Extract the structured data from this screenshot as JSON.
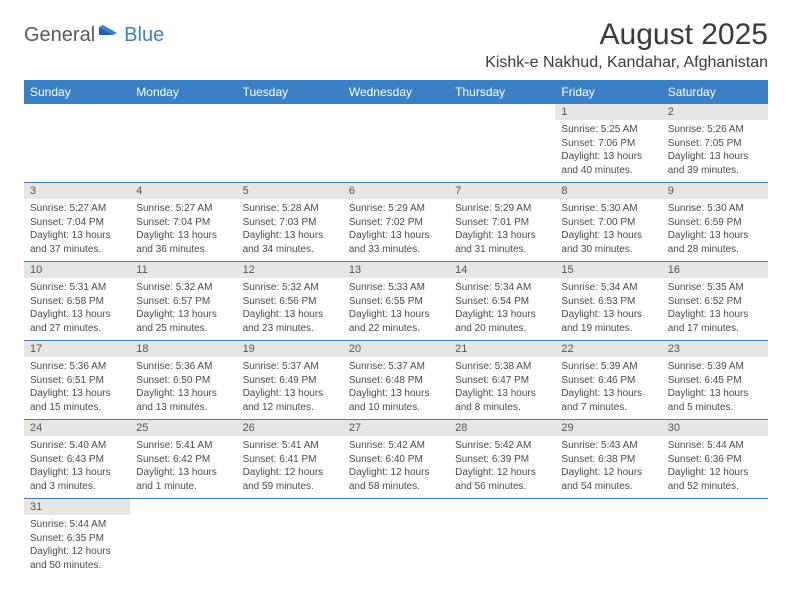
{
  "logo": {
    "text1": "General",
    "text2": "Blue"
  },
  "title": "August 2025",
  "location": "Kishk-e Nakhud, Kandahar, Afghanistan",
  "colors": {
    "header_bg": "#3b7fc4",
    "header_text": "#ffffff",
    "daynum_bg": "#e6e6e6",
    "row_border": "#3b7fc4",
    "text": "#4a4a4a"
  },
  "day_names": [
    "Sunday",
    "Monday",
    "Tuesday",
    "Wednesday",
    "Thursday",
    "Friday",
    "Saturday"
  ],
  "weeks": [
    {
      "nums": [
        "",
        "",
        "",
        "",
        "",
        "1",
        "2"
      ],
      "cells": [
        null,
        null,
        null,
        null,
        null,
        {
          "sunrise": "Sunrise: 5:25 AM",
          "sunset": "Sunset: 7:06 PM",
          "daylight": "Daylight: 13 hours and 40 minutes."
        },
        {
          "sunrise": "Sunrise: 5:26 AM",
          "sunset": "Sunset: 7:05 PM",
          "daylight": "Daylight: 13 hours and 39 minutes."
        }
      ]
    },
    {
      "nums": [
        "3",
        "4",
        "5",
        "6",
        "7",
        "8",
        "9"
      ],
      "cells": [
        {
          "sunrise": "Sunrise: 5:27 AM",
          "sunset": "Sunset: 7:04 PM",
          "daylight": "Daylight: 13 hours and 37 minutes."
        },
        {
          "sunrise": "Sunrise: 5:27 AM",
          "sunset": "Sunset: 7:04 PM",
          "daylight": "Daylight: 13 hours and 36 minutes."
        },
        {
          "sunrise": "Sunrise: 5:28 AM",
          "sunset": "Sunset: 7:03 PM",
          "daylight": "Daylight: 13 hours and 34 minutes."
        },
        {
          "sunrise": "Sunrise: 5:29 AM",
          "sunset": "Sunset: 7:02 PM",
          "daylight": "Daylight: 13 hours and 33 minutes."
        },
        {
          "sunrise": "Sunrise: 5:29 AM",
          "sunset": "Sunset: 7:01 PM",
          "daylight": "Daylight: 13 hours and 31 minutes."
        },
        {
          "sunrise": "Sunrise: 5:30 AM",
          "sunset": "Sunset: 7:00 PM",
          "daylight": "Daylight: 13 hours and 30 minutes."
        },
        {
          "sunrise": "Sunrise: 5:30 AM",
          "sunset": "Sunset: 6:59 PM",
          "daylight": "Daylight: 13 hours and 28 minutes."
        }
      ]
    },
    {
      "nums": [
        "10",
        "11",
        "12",
        "13",
        "14",
        "15",
        "16"
      ],
      "cells": [
        {
          "sunrise": "Sunrise: 5:31 AM",
          "sunset": "Sunset: 6:58 PM",
          "daylight": "Daylight: 13 hours and 27 minutes."
        },
        {
          "sunrise": "Sunrise: 5:32 AM",
          "sunset": "Sunset: 6:57 PM",
          "daylight": "Daylight: 13 hours and 25 minutes."
        },
        {
          "sunrise": "Sunrise: 5:32 AM",
          "sunset": "Sunset: 6:56 PM",
          "daylight": "Daylight: 13 hours and 23 minutes."
        },
        {
          "sunrise": "Sunrise: 5:33 AM",
          "sunset": "Sunset: 6:55 PM",
          "daylight": "Daylight: 13 hours and 22 minutes."
        },
        {
          "sunrise": "Sunrise: 5:34 AM",
          "sunset": "Sunset: 6:54 PM",
          "daylight": "Daylight: 13 hours and 20 minutes."
        },
        {
          "sunrise": "Sunrise: 5:34 AM",
          "sunset": "Sunset: 6:53 PM",
          "daylight": "Daylight: 13 hours and 19 minutes."
        },
        {
          "sunrise": "Sunrise: 5:35 AM",
          "sunset": "Sunset: 6:52 PM",
          "daylight": "Daylight: 13 hours and 17 minutes."
        }
      ]
    },
    {
      "nums": [
        "17",
        "18",
        "19",
        "20",
        "21",
        "22",
        "23"
      ],
      "cells": [
        {
          "sunrise": "Sunrise: 5:36 AM",
          "sunset": "Sunset: 6:51 PM",
          "daylight": "Daylight: 13 hours and 15 minutes."
        },
        {
          "sunrise": "Sunrise: 5:36 AM",
          "sunset": "Sunset: 6:50 PM",
          "daylight": "Daylight: 13 hours and 13 minutes."
        },
        {
          "sunrise": "Sunrise: 5:37 AM",
          "sunset": "Sunset: 6:49 PM",
          "daylight": "Daylight: 13 hours and 12 minutes."
        },
        {
          "sunrise": "Sunrise: 5:37 AM",
          "sunset": "Sunset: 6:48 PM",
          "daylight": "Daylight: 13 hours and 10 minutes."
        },
        {
          "sunrise": "Sunrise: 5:38 AM",
          "sunset": "Sunset: 6:47 PM",
          "daylight": "Daylight: 13 hours and 8 minutes."
        },
        {
          "sunrise": "Sunrise: 5:39 AM",
          "sunset": "Sunset: 6:46 PM",
          "daylight": "Daylight: 13 hours and 7 minutes."
        },
        {
          "sunrise": "Sunrise: 5:39 AM",
          "sunset": "Sunset: 6:45 PM",
          "daylight": "Daylight: 13 hours and 5 minutes."
        }
      ]
    },
    {
      "nums": [
        "24",
        "25",
        "26",
        "27",
        "28",
        "29",
        "30"
      ],
      "cells": [
        {
          "sunrise": "Sunrise: 5:40 AM",
          "sunset": "Sunset: 6:43 PM",
          "daylight": "Daylight: 13 hours and 3 minutes."
        },
        {
          "sunrise": "Sunrise: 5:41 AM",
          "sunset": "Sunset: 6:42 PM",
          "daylight": "Daylight: 13 hours and 1 minute."
        },
        {
          "sunrise": "Sunrise: 5:41 AM",
          "sunset": "Sunset: 6:41 PM",
          "daylight": "Daylight: 12 hours and 59 minutes."
        },
        {
          "sunrise": "Sunrise: 5:42 AM",
          "sunset": "Sunset: 6:40 PM",
          "daylight": "Daylight: 12 hours and 58 minutes."
        },
        {
          "sunrise": "Sunrise: 5:42 AM",
          "sunset": "Sunset: 6:39 PM",
          "daylight": "Daylight: 12 hours and 56 minutes."
        },
        {
          "sunrise": "Sunrise: 5:43 AM",
          "sunset": "Sunset: 6:38 PM",
          "daylight": "Daylight: 12 hours and 54 minutes."
        },
        {
          "sunrise": "Sunrise: 5:44 AM",
          "sunset": "Sunset: 6:36 PM",
          "daylight": "Daylight: 12 hours and 52 minutes."
        }
      ]
    },
    {
      "nums": [
        "31",
        "",
        "",
        "",
        "",
        "",
        ""
      ],
      "cells": [
        {
          "sunrise": "Sunrise: 5:44 AM",
          "sunset": "Sunset: 6:35 PM",
          "daylight": "Daylight: 12 hours and 50 minutes."
        },
        null,
        null,
        null,
        null,
        null,
        null
      ]
    }
  ]
}
